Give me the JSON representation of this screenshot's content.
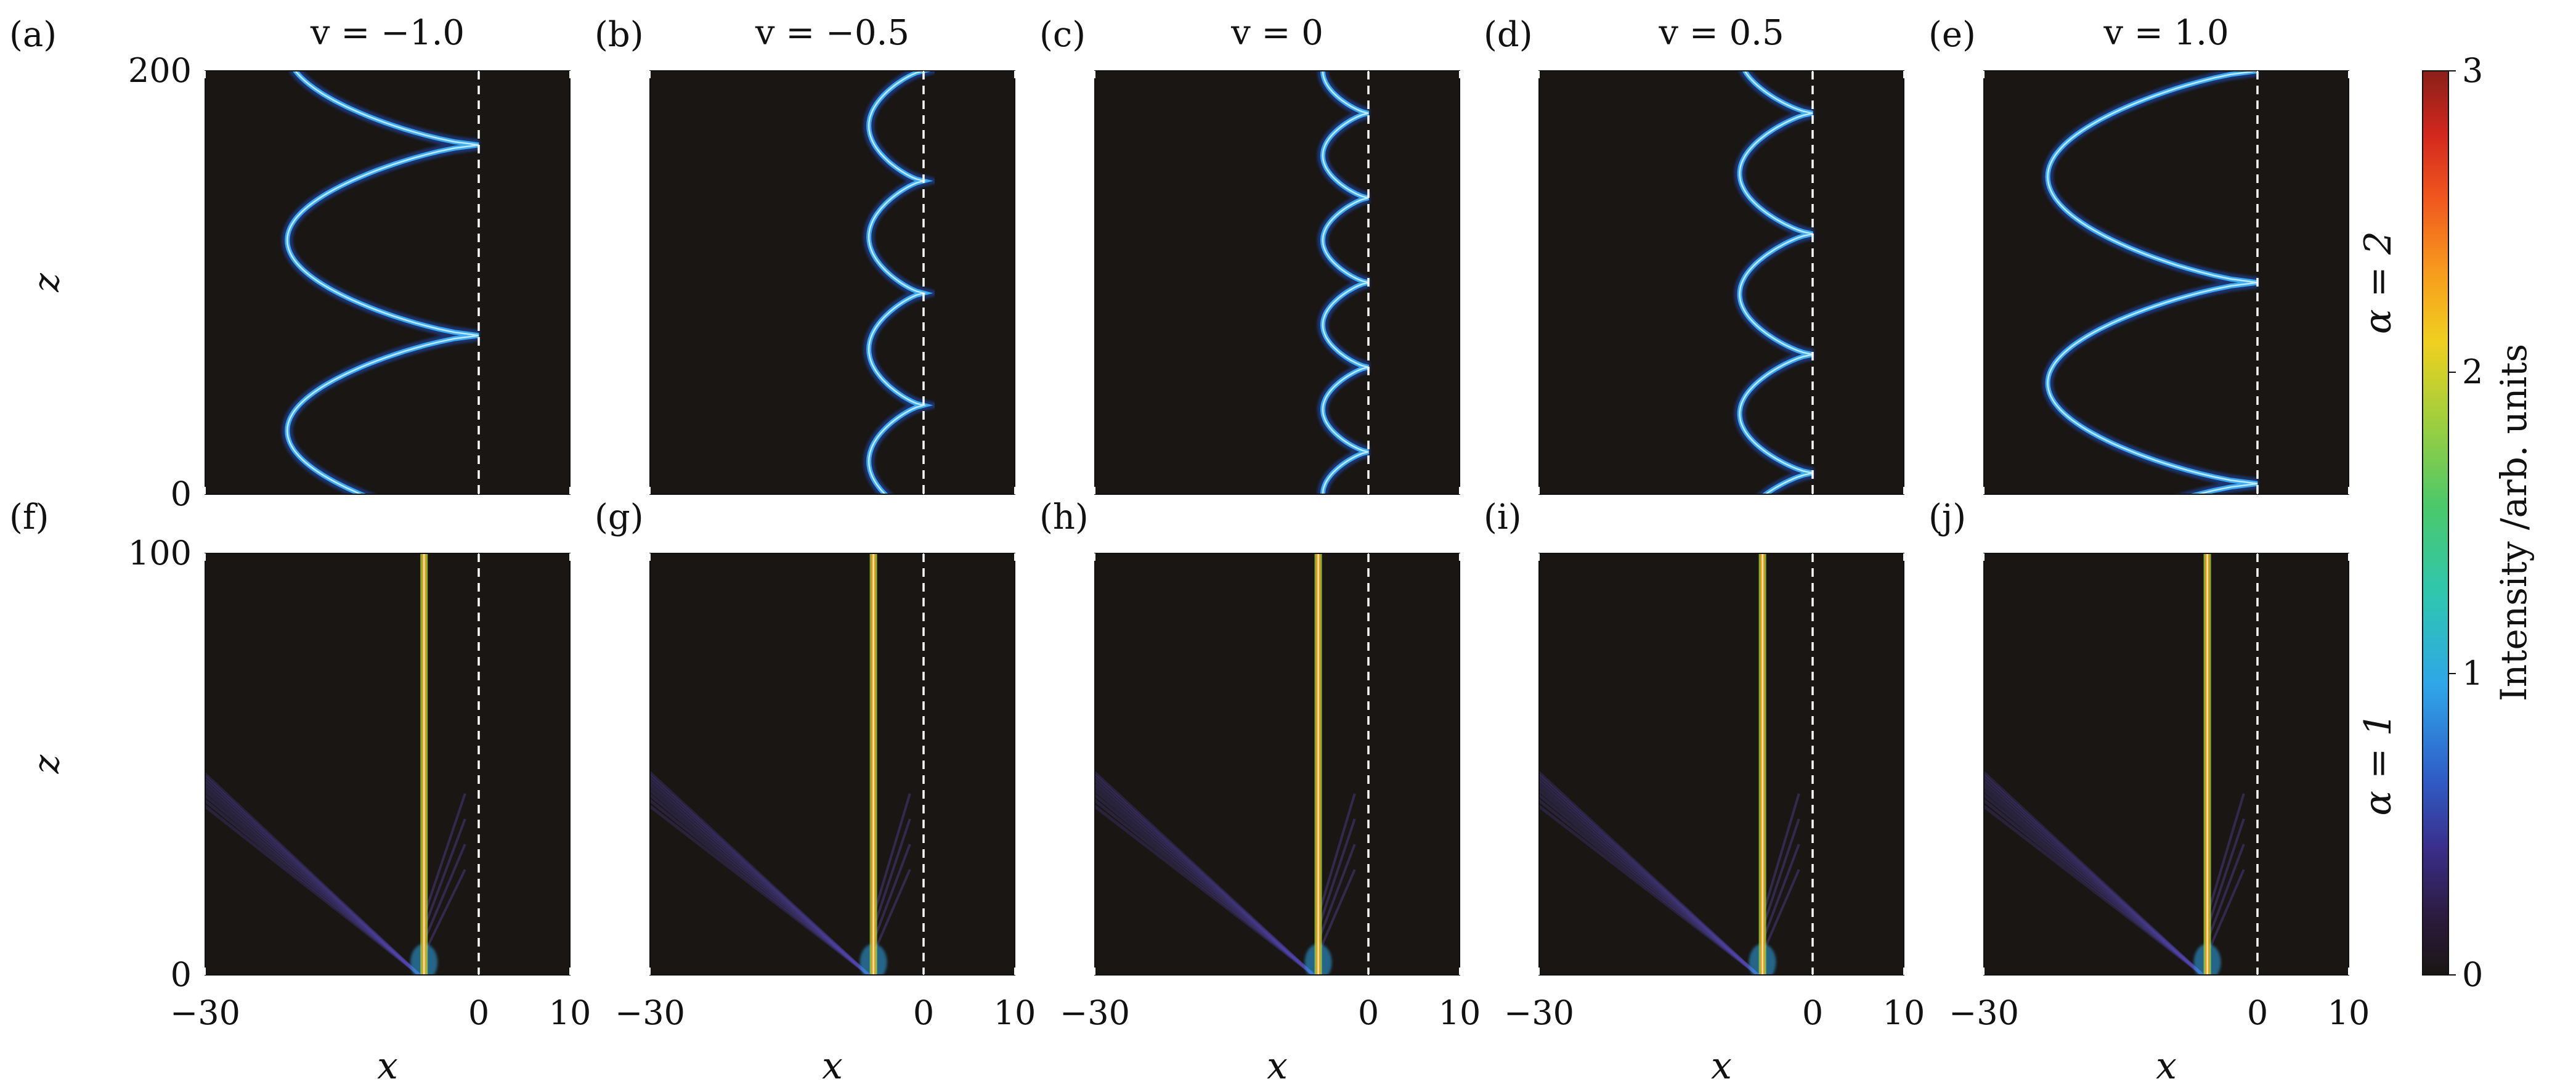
{
  "chart_data": {
    "type": "heatmap",
    "figure_layout": "2 rows x 5 columns of intensity maps with shared colorbar",
    "colormap": "jet-like on near-black background (black -> purple -> blue -> cyan -> green -> yellow -> orange -> red)",
    "background_color": "#1a1614",
    "panel_labels": [
      "(a)",
      "(b)",
      "(c)",
      "(d)",
      "(e)",
      "(f)",
      "(g)",
      "(h)",
      "(i)",
      "(j)"
    ],
    "column_titles": [
      "v = −1.0",
      "v = −0.5",
      "v = 0",
      "v = 0.5",
      "v = 1.0"
    ],
    "v_values": [
      -1.0,
      -0.5,
      0,
      0.5,
      1.0
    ],
    "row_labels": [
      "α = 2",
      "α = 1"
    ],
    "alpha_values": [
      2,
      1
    ],
    "xlabel": "x",
    "ylabel": "z",
    "xlim": [
      -30,
      10
    ],
    "x_ticks": [
      "−30",
      "0",
      "10"
    ],
    "x_tick_values": [
      -30,
      0,
      10
    ],
    "ylim_top_row": [
      0,
      200
    ],
    "ylim_bottom_row": [
      0,
      100
    ],
    "y_ticks_top_row": [
      "0",
      "200"
    ],
    "y_ticks_bottom_row": [
      "0",
      "100"
    ],
    "interface_x": 0,
    "interface_style": "white dashed vertical line at x = 0",
    "colorbar": {
      "label": "Intensity /arb. units",
      "range": [
        0,
        3
      ],
      "ticks": [
        "0",
        "1",
        "2",
        "3"
      ],
      "tick_values": [
        0,
        1,
        2,
        3
      ]
    },
    "top_row_beams": [
      {
        "v": -1.0,
        "beam_color_intensity": 1.0,
        "left_extreme_x": -21,
        "touch_interface_z": [
          75,
          165
        ],
        "pattern": "large zig-zag arcs reflecting at x = 0"
      },
      {
        "v": -0.5,
        "beam_color_intensity": 1.0,
        "left_extreme_x": -6,
        "touch_interface_z": [
          42,
          95,
          148,
          200
        ],
        "pattern": "small periodic arcs"
      },
      {
        "v": 0,
        "beam_color_intensity": 1.0,
        "left_extreme_x": -5,
        "touch_interface_z": [
          20,
          60,
          100,
          140,
          180
        ],
        "pattern": "smallest periodic arcs"
      },
      {
        "v": 0.5,
        "beam_color_intensity": 1.0,
        "left_extreme_x": -8,
        "touch_interface_z": [
          10,
          66,
          123,
          180
        ],
        "pattern": "periodic arcs"
      },
      {
        "v": 1.0,
        "beam_color_intensity": 1.0,
        "left_extreme_x": -23,
        "touch_interface_z": [
          5,
          100,
          200
        ],
        "pattern": "large arcs"
      }
    ],
    "bottom_row_beams": [
      {
        "v": -1.0,
        "beam_x": -6,
        "beam_intensity": 2.5,
        "pattern": "narrow vertical high-intensity soliton with weak radiation tails toward negative x"
      },
      {
        "v": -0.5,
        "beam_x": -5.5,
        "beam_intensity": 2.5,
        "pattern": "narrow vertical high-intensity soliton with weak radiation tails toward negative x"
      },
      {
        "v": 0,
        "beam_x": -5.5,
        "beam_intensity": 2.5,
        "pattern": "narrow vertical high-intensity soliton with weak radiation tails toward negative x"
      },
      {
        "v": 0.5,
        "beam_x": -5.5,
        "beam_intensity": 2.5,
        "pattern": "narrow vertical high-intensity soliton with weak radiation tails toward negative x"
      },
      {
        "v": 1.0,
        "beam_x": -5.5,
        "beam_intensity": 2.5,
        "pattern": "narrow vertical high-intensity soliton with weak radiation tails toward negative x"
      }
    ]
  }
}
